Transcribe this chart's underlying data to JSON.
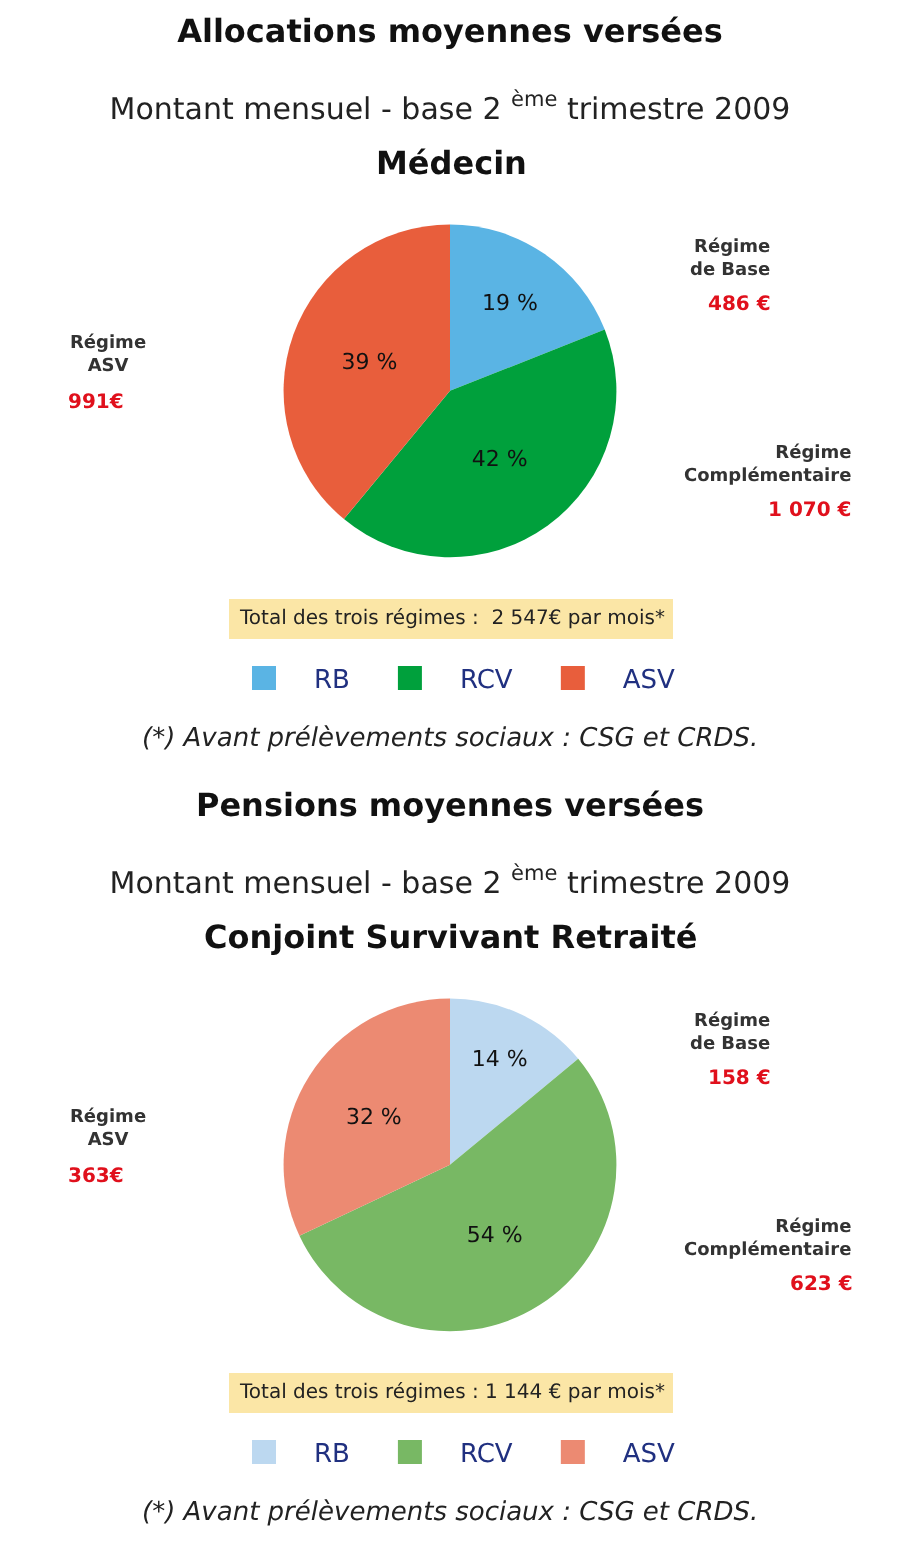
{
  "chart_data": [
    {
      "type": "pie",
      "title": "Allocations moyennes versées",
      "subtitle": "Montant mensuel - base 2 $^{ème}$ trimestre 2009",
      "categories": [
        "RB",
        "RCV",
        "ASV"
      ],
      "values": [
        19,
        42,
        39
      ],
      "colors": [
        "#5ab4e4",
        "#00a03c",
        "#e85e3c"
      ],
      "value_labels": [
        "19 %",
        "42 %",
        "39 %"
      ],
      "legend": "bottom",
      "annotations": [
        "Médecin",
        "Régime\nde Base",
        "486 €",
        "Régime\nComplémentaire",
        "1 070 €",
        "Régime\nASV",
        "991€",
        "Total des trois régimes :  2 547€ par mois*",
        "(*) Avant prélèvements sociaux : CSG et CRDS."
      ]
    },
    {
      "type": "pie",
      "title": "Pensions moyennes versées",
      "subtitle": "Montant mensuel - base 2 $^{ème}$ trimestre 2009",
      "categories": [
        "RB",
        "RCV",
        "ASV"
      ],
      "values": [
        14,
        54,
        32
      ],
      "colors": [
        "#bcd8f0",
        "#78b864",
        "#ec8a72"
      ],
      "value_labels": [
        "14 %",
        "54 %",
        "32 %"
      ],
      "legend": "bottom",
      "annotations": [
        "Conjoint Survivant Retraité",
        "Régime\nde Base",
        "158 €",
        "Régime\nComplémentaire",
        "623 €",
        "Régime\nASV",
        "363€",
        "Total des trois régimes : 1 144 € par mois*",
        "(*) Avant prélèvements sociaux : CSG et CRDS."
      ]
    }
  ]
}
